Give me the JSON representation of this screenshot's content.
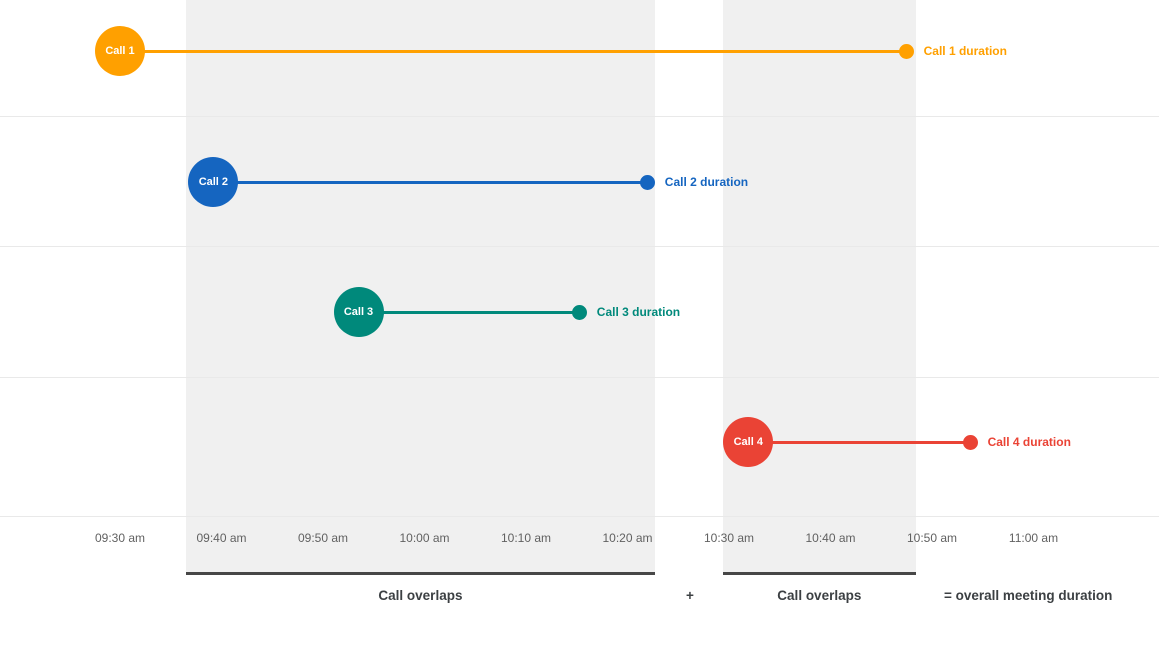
{
  "chart_data": {
    "type": "timeline",
    "title": "",
    "x_axis": {
      "tick_labels": [
        "09:30 am",
        "09:40 am",
        "09:50 am",
        "10:00 am",
        "10:10 am",
        "10:20 am",
        "10:30 am",
        "10:40 am",
        "10:50 am",
        "11:00 am"
      ],
      "tick_interval_minutes": 10,
      "range_start": "09:30 am",
      "range_end": "11:00 am",
      "grid": true
    },
    "series": [
      {
        "name": "Call 1",
        "duration_label": "Call 1 duration",
        "color": "#FFA000",
        "start": "09:30 am",
        "end": "10:47 am",
        "start_min": 0,
        "end_min": 77.5,
        "row": 0
      },
      {
        "name": "Call 2",
        "duration_label": "Call 2 duration",
        "color": "#1565C0",
        "start": "09:39 am",
        "end": "10:22 am",
        "start_min": 9.2,
        "end_min": 52,
        "row": 1
      },
      {
        "name": "Call 3",
        "duration_label": "Call 3 duration",
        "color": "#00897B",
        "start": "09:53 am",
        "end": "10:15 am",
        "start_min": 23.5,
        "end_min": 45.3,
        "row": 2
      },
      {
        "name": "Call 4",
        "duration_label": "Call 4 duration",
        "color": "#EA4335",
        "start": "10:32 am",
        "end": "10:54 am",
        "start_min": 61.9,
        "end_min": 83.8,
        "row": 3
      }
    ],
    "overlap_regions": [
      {
        "label": "Call overlaps",
        "start": "09:36 am",
        "end": "10:23 am",
        "start_min": 6.5,
        "end_min": 52.7
      },
      {
        "label": "Call overlaps",
        "start": "10:29 am",
        "end": "10:48 am",
        "start_min": 59.4,
        "end_min": 78.4
      }
    ],
    "footer": {
      "plus": "+",
      "equals": "= overall meeting duration"
    },
    "colors": {
      "overlap_band": "#f0f0f0",
      "underline": "#474747",
      "gridline": "#e9e9e9",
      "tick_text": "#616161",
      "footer_text": "#3c4043"
    }
  }
}
